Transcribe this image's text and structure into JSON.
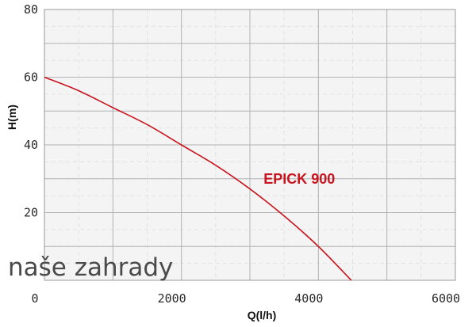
{
  "chart_data": {
    "type": "line",
    "xlabel": "Q(l/h)",
    "ylabel": "H(m)",
    "xlim": [
      0,
      6000
    ],
    "ylim": [
      0,
      80
    ],
    "x_ticks": [
      0,
      2000,
      4000,
      6000
    ],
    "y_ticks": [
      20,
      40,
      60,
      80
    ],
    "grid": true,
    "series": [
      {
        "name": "EPICK 900",
        "color": "#c8141e",
        "x": [
          0,
          500,
          1000,
          1500,
          2000,
          2500,
          3000,
          3500,
          4000,
          4480
        ],
        "y": [
          60,
          56,
          51,
          46,
          40,
          34,
          27,
          19,
          10,
          0
        ]
      }
    ]
  },
  "watermark": "naše zahrady"
}
